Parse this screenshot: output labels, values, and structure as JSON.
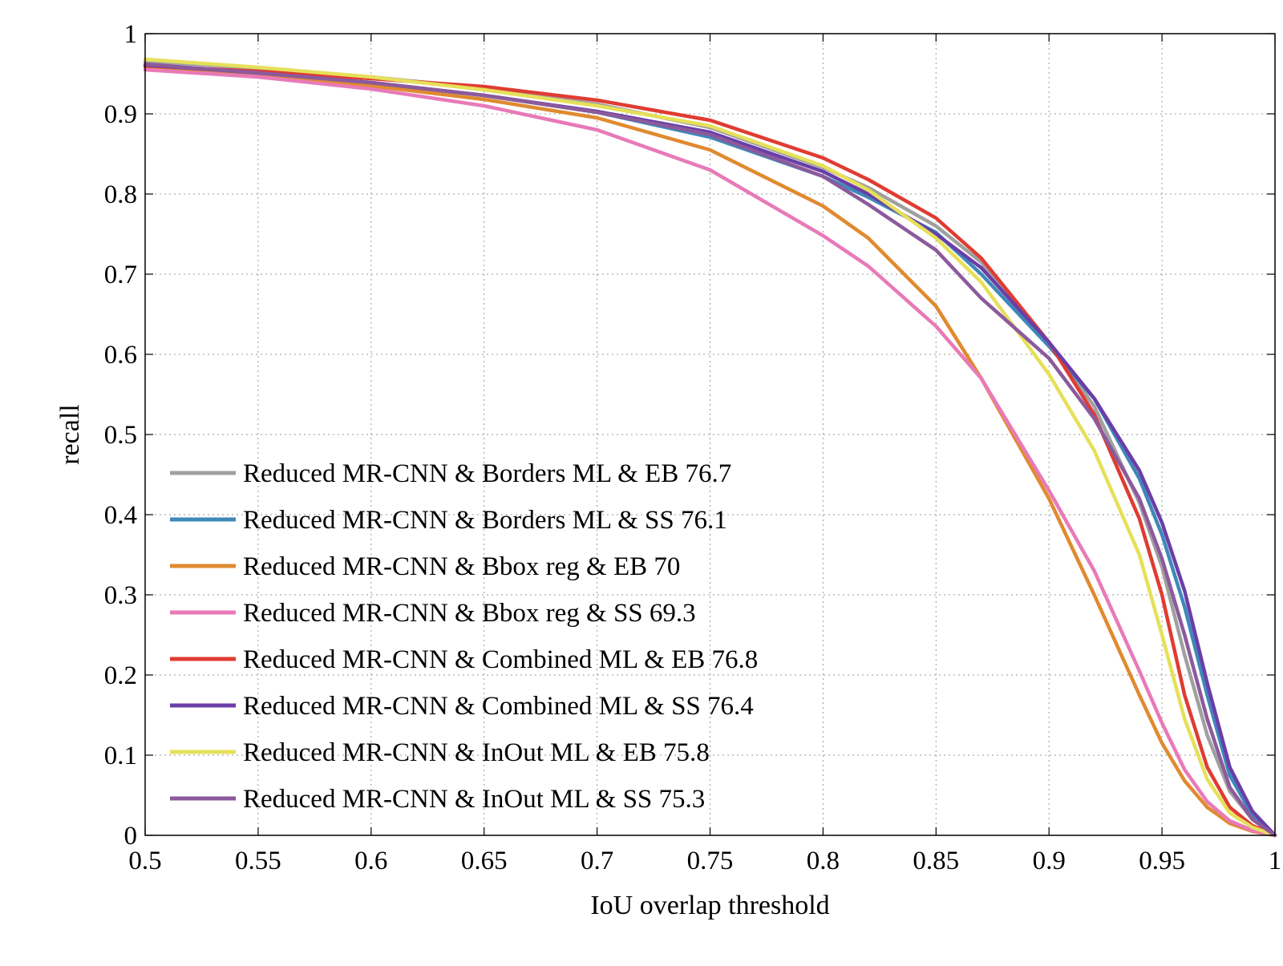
{
  "chart_data": {
    "type": "line",
    "title": "",
    "xlabel": "IoU overlap threshold",
    "ylabel": "recall",
    "xlim": [
      0.5,
      1
    ],
    "ylim": [
      0,
      1
    ],
    "grid": true,
    "legend_position": "bottom-left",
    "xticks": [
      0.5,
      0.55,
      0.6,
      0.65,
      0.7,
      0.75,
      0.8,
      0.85,
      0.9,
      0.95,
      1
    ],
    "xtick_labels": [
      "0.5",
      "0.55",
      "0.6",
      "0.65",
      "0.7",
      "0.75",
      "0.8",
      "0.85",
      "0.9",
      "0.95",
      "1"
    ],
    "yticks": [
      0,
      0.1,
      0.2,
      0.3,
      0.4,
      0.5,
      0.6,
      0.7,
      0.8,
      0.9,
      1
    ],
    "ytick_labels": [
      "0",
      "0.1",
      "0.2",
      "0.3",
      "0.4",
      "0.5",
      "0.6",
      "0.7",
      "0.8",
      "0.9",
      "1"
    ],
    "x": [
      0.5,
      0.55,
      0.6,
      0.65,
      0.7,
      0.75,
      0.8,
      0.82,
      0.85,
      0.87,
      0.9,
      0.92,
      0.94,
      0.95,
      0.96,
      0.97,
      0.98,
      0.99,
      1.0
    ],
    "series": [
      {
        "name": "Reduced MR-CNN & Borders ML & EB 76.7",
        "color": "#a0a0a0",
        "values": [
          0.966,
          0.957,
          0.946,
          0.932,
          0.912,
          0.883,
          0.833,
          0.808,
          0.76,
          0.715,
          0.615,
          0.535,
          0.415,
          0.335,
          0.225,
          0.125,
          0.055,
          0.02,
          0.0
        ]
      },
      {
        "name": "Reduced MR-CNN & Borders ML & SS 76.1",
        "color": "#3f88b8",
        "values": [
          0.96,
          0.951,
          0.939,
          0.923,
          0.902,
          0.871,
          0.822,
          0.796,
          0.752,
          0.7,
          0.61,
          0.545,
          0.445,
          0.375,
          0.285,
          0.175,
          0.075,
          0.025,
          0.0
        ]
      },
      {
        "name": "Reduced MR-CNN & Bbox reg & EB 70",
        "color": "#e08a30",
        "values": [
          0.958,
          0.948,
          0.935,
          0.918,
          0.895,
          0.855,
          0.785,
          0.745,
          0.66,
          0.57,
          0.42,
          0.3,
          0.175,
          0.115,
          0.068,
          0.035,
          0.015,
          0.005,
          0.0
        ]
      },
      {
        "name": "Reduced MR-CNN & Bbox reg & SS 69.3",
        "color": "#e87ab8",
        "values": [
          0.955,
          0.946,
          0.931,
          0.91,
          0.88,
          0.83,
          0.748,
          0.71,
          0.635,
          0.57,
          0.43,
          0.33,
          0.205,
          0.14,
          0.082,
          0.042,
          0.018,
          0.006,
          0.0
        ]
      },
      {
        "name": "Reduced MR-CNN & Combined ML & EB 76.8",
        "color": "#e03c32",
        "values": [
          0.96,
          0.953,
          0.944,
          0.934,
          0.917,
          0.892,
          0.845,
          0.818,
          0.77,
          0.72,
          0.615,
          0.525,
          0.395,
          0.3,
          0.175,
          0.085,
          0.035,
          0.012,
          0.0
        ]
      },
      {
        "name": "Reduced MR-CNN & Combined ML & SS 76.4",
        "color": "#6a3ea8",
        "values": [
          0.961,
          0.951,
          0.939,
          0.923,
          0.903,
          0.877,
          0.828,
          0.8,
          0.75,
          0.708,
          0.615,
          0.545,
          0.455,
          0.39,
          0.305,
          0.19,
          0.085,
          0.03,
          0.0
        ]
      },
      {
        "name": "Reduced MR-CNN & InOut ML & EB 75.8",
        "color": "#e6e05a",
        "values": [
          0.968,
          0.958,
          0.946,
          0.93,
          0.91,
          0.885,
          0.835,
          0.805,
          0.745,
          0.69,
          0.575,
          0.48,
          0.35,
          0.25,
          0.145,
          0.07,
          0.028,
          0.01,
          0.0
        ]
      },
      {
        "name": "Reduced MR-CNN & InOut ML & SS 75.3",
        "color": "#8c5a9c",
        "values": [
          0.962,
          0.951,
          0.939,
          0.923,
          0.902,
          0.874,
          0.822,
          0.787,
          0.73,
          0.67,
          0.595,
          0.52,
          0.42,
          0.345,
          0.25,
          0.145,
          0.06,
          0.02,
          0.0
        ]
      }
    ]
  }
}
